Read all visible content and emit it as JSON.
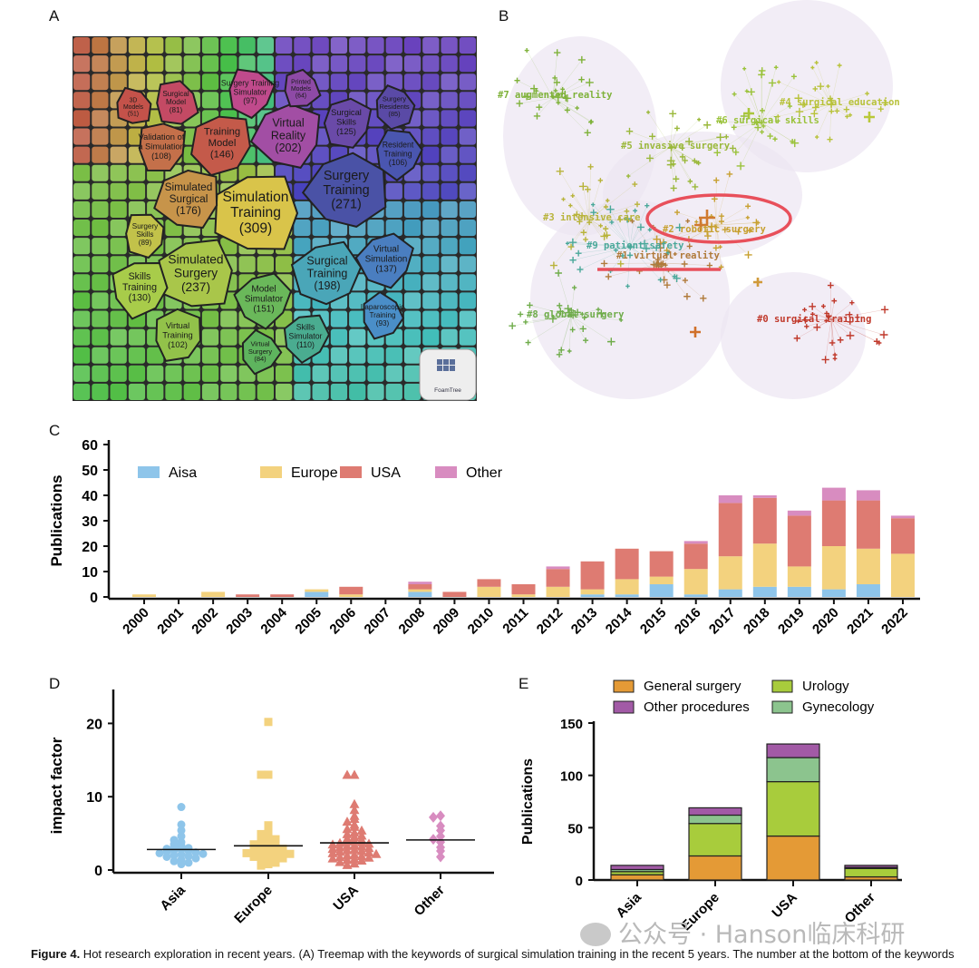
{
  "panels": {
    "a": "A",
    "b": "B",
    "c": "C",
    "d": "D",
    "e": "E"
  },
  "chart_data": [
    {
      "type": "treemap",
      "panel": "A",
      "logo_text": "FoamTree",
      "cells": [
        {
          "label": "Simulation Training",
          "value": 309,
          "color": "#d9c44a"
        },
        {
          "label": "Surgery Training",
          "value": 271,
          "color": "#4a52a6"
        },
        {
          "label": "Simulated Surgery",
          "value": 237,
          "color": "#a9c64a"
        },
        {
          "label": "Virtual Reality",
          "value": 202,
          "color": "#a24ea4"
        },
        {
          "label": "Surgical Training",
          "value": 198,
          "color": "#4aa6b8"
        },
        {
          "label": "Simulated Surgical",
          "value": 176,
          "color": "#c7944a"
        },
        {
          "label": "Model Simulator",
          "value": 151,
          "color": "#6ab85a"
        },
        {
          "label": "Training Model",
          "value": 146,
          "color": "#c45a4a"
        },
        {
          "label": "Virtual Simulation",
          "value": 137,
          "color": "#4a7ec0"
        },
        {
          "label": "Skills Training",
          "value": 130,
          "color": "#a8cc4a"
        },
        {
          "label": "Surgical Skills",
          "value": 125,
          "color": "#6a4aa8"
        },
        {
          "label": "Skills Simulator",
          "value": 110,
          "color": "#4aac90"
        },
        {
          "label": "Validation of a Simulation",
          "value": 108,
          "color": "#c4704a"
        },
        {
          "label": "Resident Training",
          "value": 106,
          "color": "#4a56b0"
        },
        {
          "label": "Virtual Training",
          "value": 102,
          "color": "#92c24a"
        },
        {
          "label": "Surgery Training Simulator",
          "value": 97,
          "color": "#c04a8c"
        },
        {
          "label": "Laparoscopic Training",
          "value": 93,
          "color": "#4a8ec8"
        },
        {
          "label": "Surgery Skills",
          "value": 89,
          "color": "#c2c24a"
        },
        {
          "label": "Virtual Surgery",
          "value": 84,
          "color": "#5eb45e"
        },
        {
          "label": "Surgical Model",
          "value": 81,
          "color": "#c44a64"
        },
        {
          "label": "Surgery Residents",
          "value": 85,
          "color": "#5a4aa6"
        },
        {
          "label": "Printed Models",
          "value": 64,
          "color": "#8e4aa6"
        },
        {
          "label": "3D Models",
          "value": 51,
          "color": "#c4524a"
        }
      ]
    },
    {
      "type": "network",
      "panel": "B",
      "clusters": [
        {
          "label": "#0 surgical training",
          "color": "#c0392b"
        },
        {
          "label": "#1 virtual reality",
          "color": "#b07a3a"
        },
        {
          "label": "#2 robotic surgery",
          "color": "#c7a030"
        },
        {
          "label": "#3 intensive care",
          "color": "#b8b33a"
        },
        {
          "label": "#4 surgical education",
          "color": "#b8c23a"
        },
        {
          "label": "#5 invasive surgery",
          "color": "#9ab83a"
        },
        {
          "label": "#6 surgical skills",
          "color": "#9ac23a"
        },
        {
          "label": "#7 augmented reality",
          "color": "#7fb23a"
        },
        {
          "label": "#8 global surgery",
          "color": "#6fac4a"
        },
        {
          "label": "#9 patient safety",
          "color": "#4aa89a"
        }
      ]
    },
    {
      "type": "bar",
      "panel": "C",
      "stacked": true,
      "ylabel": "Publications",
      "xlabel": "",
      "ylim": [
        0,
        60
      ],
      "yticks": [
        0,
        10,
        20,
        30,
        40,
        50,
        60
      ],
      "legend_position": "top-left",
      "categories": [
        "2000",
        "2001",
        "2002",
        "2003",
        "2004",
        "2005",
        "2006",
        "2007",
        "2008",
        "2009",
        "2010",
        "2011",
        "2012",
        "2013",
        "2014",
        "2015",
        "2016",
        "2017",
        "2018",
        "2019",
        "2020",
        "2021",
        "2022"
      ],
      "series": [
        {
          "name": "Aisa",
          "color": "#8ec5ea",
          "values": [
            0,
            0,
            0,
            0,
            0,
            2,
            0,
            0,
            2,
            0,
            0,
            0,
            0,
            1,
            1,
            5,
            1,
            3,
            4,
            4,
            3,
            5,
            0
          ]
        },
        {
          "name": "Europe",
          "color": "#f3d27e",
          "values": [
            1,
            0,
            2,
            0,
            0,
            1,
            1,
            0,
            1,
            0,
            4,
            1,
            4,
            2,
            6,
            3,
            10,
            13,
            17,
            8,
            17,
            14,
            17
          ]
        },
        {
          "name": "USA",
          "color": "#de7b72",
          "values": [
            0,
            0,
            0,
            1,
            1,
            0,
            3,
            0,
            2,
            2,
            3,
            4,
            7,
            11,
            12,
            10,
            10,
            21,
            18,
            20,
            18,
            19,
            14
          ]
        },
        {
          "name": "Other",
          "color": "#d88cc0",
          "values": [
            0,
            0,
            0,
            0,
            0,
            0,
            0,
            0,
            1,
            0,
            0,
            0,
            1,
            0,
            0,
            0,
            1,
            3,
            1,
            2,
            5,
            4,
            1
          ]
        }
      ]
    },
    {
      "type": "scatter",
      "panel": "D",
      "ylabel": "impact factor",
      "ylim": [
        0,
        25
      ],
      "yticks": [
        0,
        10,
        20
      ],
      "categories": [
        "Asia",
        "Europe",
        "USA",
        "Other"
      ],
      "colors": [
        "#8ec5ea",
        "#f3d27e",
        "#de7b72",
        "#d88cc0"
      ],
      "markers": [
        "circle",
        "square",
        "triangle",
        "diamond"
      ],
      "means": [
        2.8,
        3.3,
        3.7,
        4.1
      ],
      "points": [
        [
          8.6,
          6.2,
          5.4,
          4.6,
          4.1,
          3.8,
          3.5,
          3.3,
          3.1,
          3.0,
          2.9,
          2.8,
          2.7,
          2.6,
          2.5,
          2.4,
          2.3,
          2.2,
          2.1,
          2.0,
          1.9,
          1.8,
          1.6,
          1.4,
          1.2,
          1.0,
          0.8
        ],
        [
          20.2,
          13.0,
          13.0,
          6.1,
          5.6,
          5.2,
          4.9,
          4.6,
          4.4,
          4.2,
          4.0,
          3.8,
          3.7,
          3.5,
          3.4,
          3.3,
          3.2,
          3.0,
          2.9,
          2.8,
          2.7,
          2.6,
          2.5,
          2.4,
          2.3,
          2.2,
          2.1,
          2.0,
          1.9,
          1.8,
          1.6,
          1.4,
          1.2,
          1.0,
          0.8,
          0.6
        ],
        [
          13.0,
          13.0,
          9.0,
          8.2,
          7.4,
          7.0,
          6.6,
          6.2,
          5.9,
          5.6,
          5.4,
          5.1,
          4.9,
          4.7,
          4.5,
          4.3,
          4.1,
          4.0,
          3.9,
          3.8,
          3.7,
          3.6,
          3.5,
          3.4,
          3.3,
          3.2,
          3.1,
          3.0,
          2.9,
          2.8,
          2.7,
          2.6,
          2.5,
          2.4,
          2.3,
          2.2,
          2.1,
          2.0,
          1.9,
          1.8,
          1.7,
          1.6,
          1.5,
          1.4,
          1.3,
          1.1,
          0.9,
          0.7
        ],
        [
          7.4,
          7.2,
          6.0,
          5.4,
          4.6,
          4.2,
          3.8,
          3.1,
          2.6,
          1.8
        ]
      ]
    },
    {
      "type": "bar",
      "panel": "E",
      "stacked": true,
      "ylabel": "Publications",
      "ylim": [
        0,
        150
      ],
      "yticks": [
        0,
        50,
        100,
        150
      ],
      "categories": [
        "Asia",
        "Europe",
        "USA",
        "Other"
      ],
      "legend_position": "top",
      "series": [
        {
          "name": "General surgery",
          "color": "#e49a36",
          "values": [
            5,
            23,
            42,
            3
          ]
        },
        {
          "name": "Urology",
          "color": "#a8cc3c",
          "values": [
            3,
            31,
            52,
            8
          ]
        },
        {
          "name": "Gynecology",
          "color": "#8cc48e",
          "values": [
            2,
            8,
            23,
            1
          ]
        },
        {
          "name": "Other procedures",
          "color": "#a25aa6",
          "values": [
            4,
            7,
            13,
            2
          ]
        }
      ]
    }
  ],
  "watermark": "公众号 · Hanson临床科研",
  "caption": {
    "bold": "Figure 4.",
    "text": " Hot research exploration in recent years. (A) Treemap with the keywords of surgical simulation training in the recent 5 years. The number at the bottom of the keywords refers to the number of publications. (B) Cluster analysis of surgical simulation training in the recent 5 years. The round-arrow and a..."
  }
}
